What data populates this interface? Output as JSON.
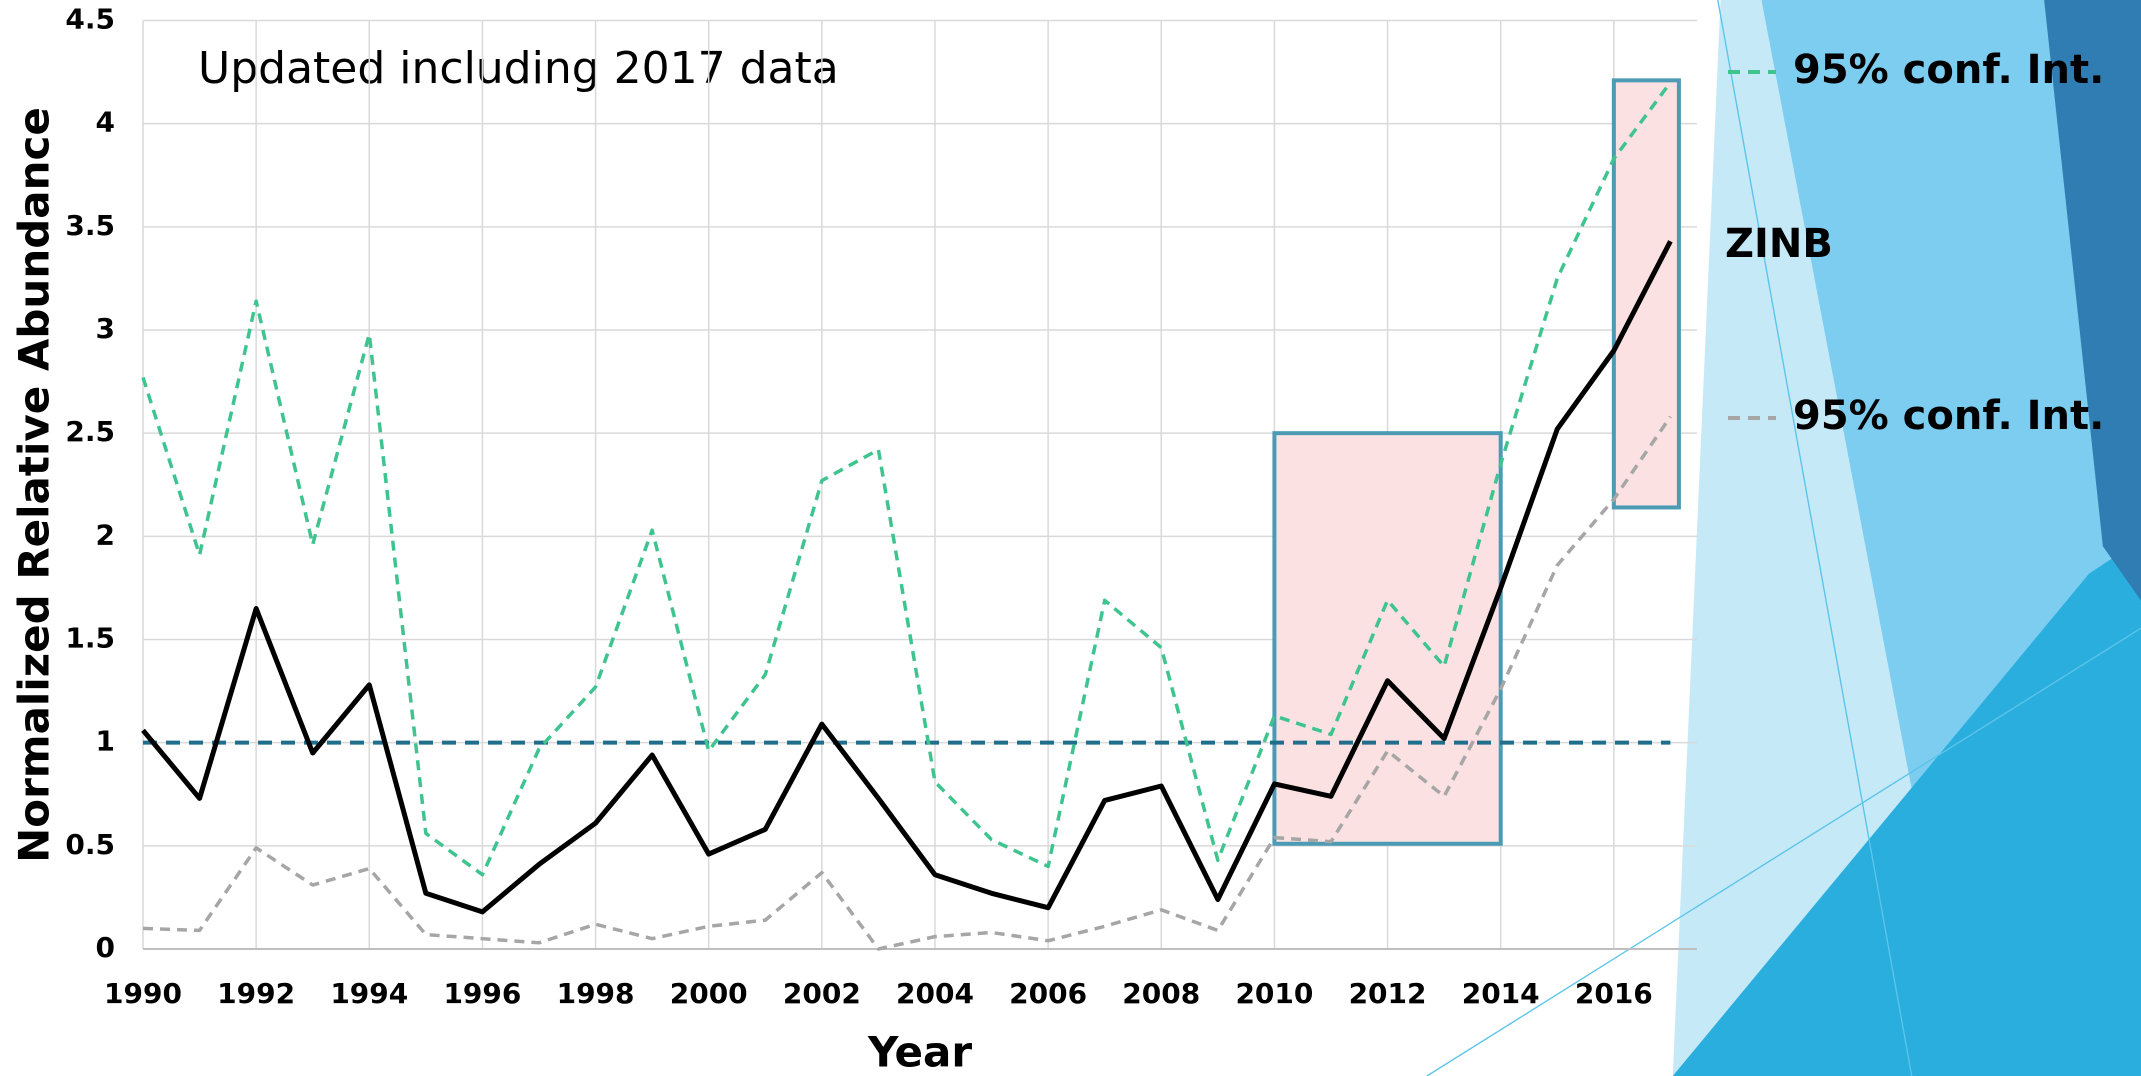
{
  "chart_data": {
    "type": "line",
    "annotation": "Updated including 2017 data",
    "x_label": "Year",
    "y_label": "Normalized Relative Abundance",
    "x": [
      1990,
      1991,
      1992,
      1993,
      1994,
      1995,
      1996,
      1997,
      1998,
      1999,
      2000,
      2001,
      2002,
      2003,
      2004,
      2005,
      2006,
      2007,
      2008,
      2009,
      2010,
      2011,
      2012,
      2013,
      2014,
      2015,
      2016,
      2017
    ],
    "series": [
      {
        "name": "95% conf. Int.",
        "color": "#3fc490",
        "dashed": true,
        "values": [
          2.77,
          1.91,
          3.14,
          1.96,
          2.98,
          0.56,
          0.36,
          0.97,
          1.27,
          2.03,
          0.96,
          1.33,
          2.27,
          2.42,
          0.81,
          0.53,
          0.4,
          1.69,
          1.46,
          0.43,
          1.13,
          1.04,
          1.69,
          1.37,
          2.35,
          3.25,
          3.83,
          4.2
        ]
      },
      {
        "name": "ZINB",
        "color": "#000000",
        "dashed": false,
        "values": [
          1.06,
          0.73,
          1.65,
          0.95,
          1.28,
          0.27,
          0.18,
          0.41,
          0.61,
          0.94,
          0.46,
          0.58,
          1.09,
          0.73,
          0.36,
          0.27,
          0.2,
          0.72,
          0.79,
          0.24,
          0.8,
          0.74,
          1.3,
          1.02,
          1.75,
          2.52,
          2.9,
          3.43
        ]
      },
      {
        "name": "95% conf. Int.",
        "color": "#a6a6a6",
        "dashed": true,
        "values": [
          0.1,
          0.09,
          0.49,
          0.31,
          0.39,
          0.07,
          0.05,
          0.03,
          0.12,
          0.05,
          0.11,
          0.14,
          0.37,
          0,
          0.06,
          0.08,
          0.04,
          0.11,
          0.19,
          0.09,
          0.54,
          0.52,
          0.96,
          0.74,
          1.26,
          1.86,
          2.18,
          2.58
        ]
      }
    ],
    "reference_line": 1,
    "reference_color": "#1f6e8c",
    "highlights": [
      {
        "x": [
          2010,
          2014
        ],
        "y": [
          0.51,
          2.5
        ]
      },
      {
        "x": [
          2016,
          2017.15
        ],
        "y": [
          2.14,
          4.21
        ]
      }
    ],
    "highlight_fill": "#fbe1e1",
    "highlight_stroke": "#4a9bb3",
    "xlim": [
      1990,
      2017.47
    ],
    "xticks": [
      1990,
      1992,
      1994,
      1996,
      1998,
      2000,
      2002,
      2004,
      2006,
      2008,
      2010,
      2012,
      2014,
      2016
    ],
    "ylim": [
      0,
      4.5
    ],
    "yticks": [
      0,
      0.5,
      1,
      1.5,
      2,
      2.5,
      3,
      3.5,
      4,
      4.5
    ],
    "grid": true
  }
}
